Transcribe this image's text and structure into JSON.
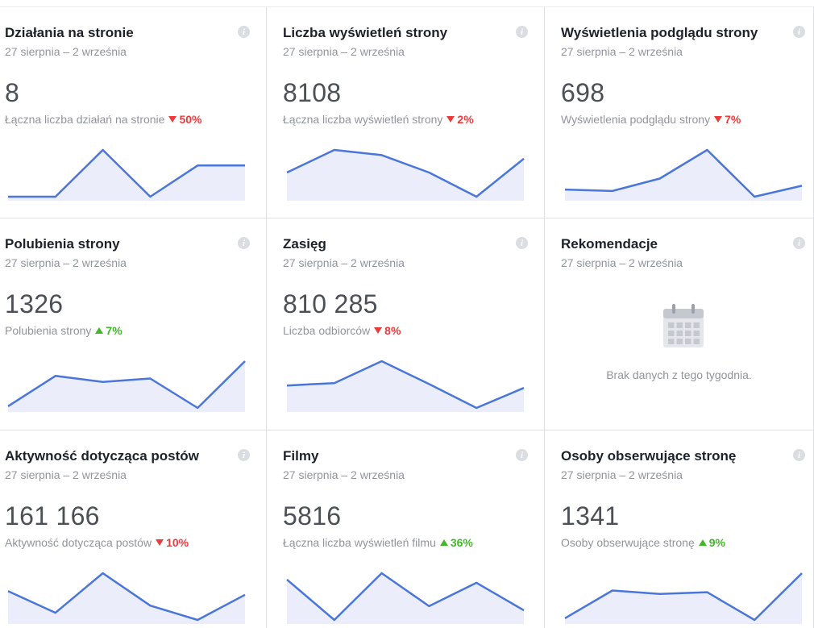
{
  "colors": {
    "line": "#4a76dc",
    "area": "#ebeefa",
    "down": "#ed3b3b",
    "up": "#42b72a",
    "muted": "#90949c"
  },
  "cards": [
    {
      "title": "Działania na stronie",
      "date": "27 sierpnia – 2 września",
      "value": "8",
      "metric": "Łączna liczba działań na stronie",
      "delta": "50%",
      "trend": "down",
      "series": [
        0,
        0,
        3,
        0,
        2,
        2
      ]
    },
    {
      "title": "Liczba wyświetleń strony",
      "date": "27 sierpnia – 2 września",
      "value": "8108",
      "metric": "Łączna liczba wyświetleń strony",
      "delta": "2%",
      "trend": "down",
      "series": [
        1300,
        1740,
        1640,
        1300,
        830,
        1570
      ]
    },
    {
      "title": "Wyświetlenia podglądu strony",
      "date": "27 sierpnia – 2 września",
      "value": "698",
      "metric": "Wyświetlenia podglądu strony",
      "delta": "7%",
      "trend": "down",
      "series": [
        100,
        97,
        123,
        183,
        85,
        108
      ]
    },
    {
      "title": "Polubienia strony",
      "date": "27 sierpnia – 2 września",
      "value": "1326",
      "metric": "Polubienia strony",
      "delta": "7%",
      "trend": "up",
      "series": [
        190,
        225,
        218,
        222,
        188,
        242
      ]
    },
    {
      "title": "Zasięg",
      "date": "27 sierpnia – 2 września",
      "value": "810 285",
      "metric": "Liczba odbiorców",
      "delta": "8%",
      "trend": "down",
      "series": [
        130000,
        135000,
        180000,
        133000,
        84000,
        125000
      ]
    },
    {
      "title": "Rekomendacje",
      "date": "27 sierpnia – 2 września",
      "value": null,
      "empty_text": "Brak danych z tego tygodnia.",
      "empty_icon": "calendar-icon"
    },
    {
      "title": "Aktywność dotycząca postów",
      "date": "27 sierpnia – 2 września",
      "value": "161 166",
      "metric": "Aktywność dotycząca postów",
      "delta": "10%",
      "trend": "down",
      "series": [
        24000,
        21000,
        26500,
        22000,
        20000,
        23500
      ]
    },
    {
      "title": "Filmy",
      "date": "27 sierpnia – 2 września",
      "value": "5816",
      "metric": "Łączna liczba wyświetleń filmu",
      "delta": "36%",
      "trend": "up",
      "series": [
        900,
        520,
        960,
        650,
        870,
        610
      ]
    },
    {
      "title": "Osoby obserwujące stronę",
      "date": "27 sierpnia – 2 września",
      "value": "1341",
      "metric": "Osoby obserwujące stronę",
      "delta": "9%",
      "trend": "up",
      "series": [
        190,
        222,
        218,
        220,
        188,
        242
      ]
    }
  ]
}
